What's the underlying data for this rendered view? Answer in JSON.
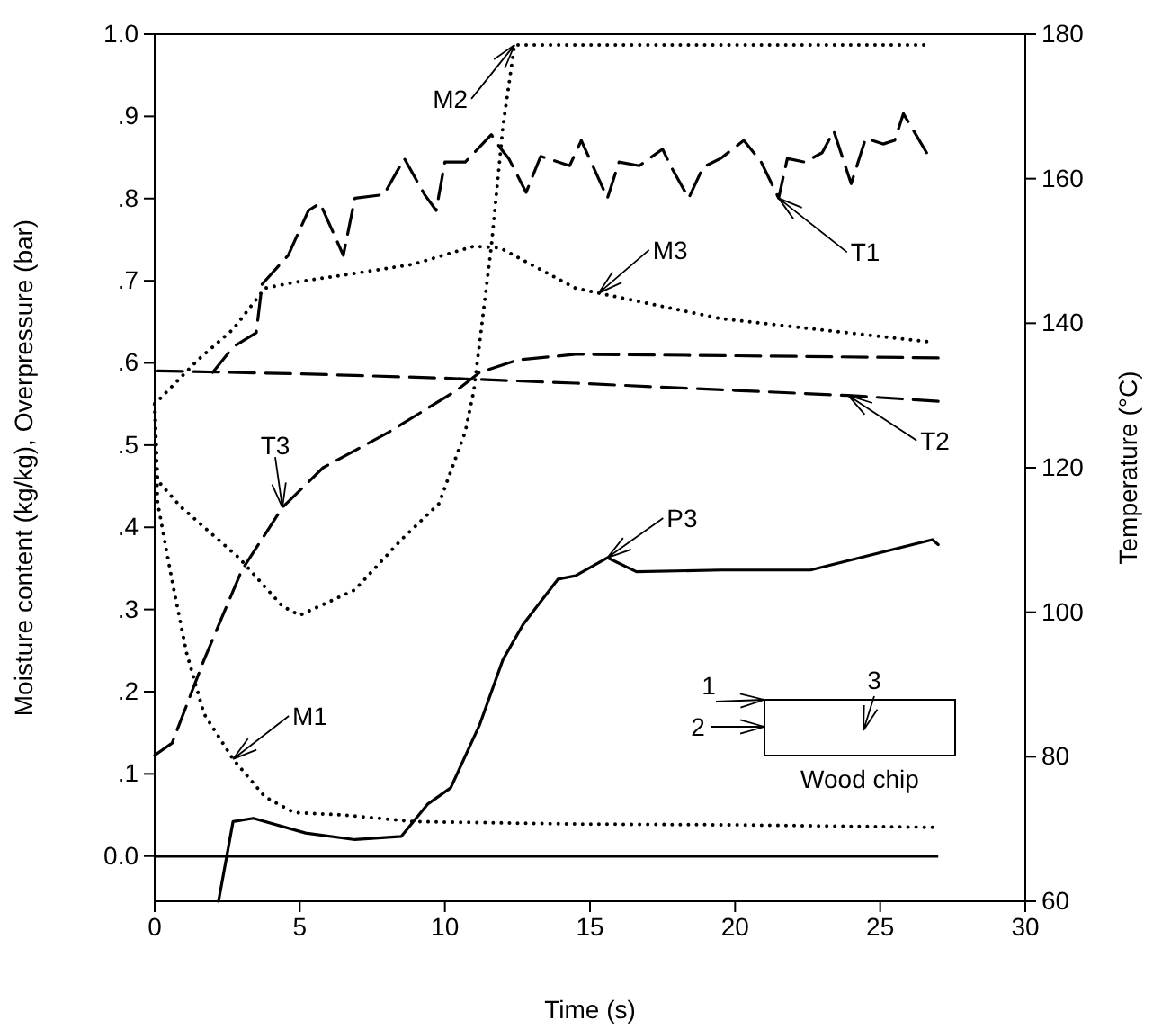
{
  "chart_data": {
    "type": "line",
    "xlabel": "Time (s)",
    "ylabel": "Moisture content (kg/kg), Overpressure (bar)",
    "y2label": "Temperature (°C)",
    "xlim": [
      0,
      30
    ],
    "xticks": [
      0,
      5,
      10,
      15,
      20,
      25,
      30
    ],
    "ylim": [
      -0.055,
      1.0
    ],
    "yticks": [
      {
        "value": 0,
        "label": "0.0"
      },
      {
        "value": 0.1,
        "label": ".1"
      },
      {
        "value": 0.2,
        "label": ".2"
      },
      {
        "value": 0.3,
        "label": ".3"
      },
      {
        "value": 0.4,
        "label": ".4"
      },
      {
        "value": 0.5,
        "label": ".5"
      },
      {
        "value": 0.6,
        "label": ".6"
      },
      {
        "value": 0.7,
        "label": ".7"
      },
      {
        "value": 0.8,
        "label": ".8"
      },
      {
        "value": 0.9,
        "label": ".9"
      },
      {
        "value": 1.0,
        "label": "1.0"
      }
    ],
    "y2lim": [
      60,
      180
    ],
    "y2ticks": [
      60,
      80,
      100,
      120,
      140,
      160,
      180
    ],
    "grid": false,
    "marker": "none",
    "ref_lines": [
      {
        "axis": "y",
        "value": 0,
        "color": "#000000",
        "line_style": "solid"
      }
    ],
    "annotations": [
      "1",
      "2",
      "3",
      "Wood chip"
    ],
    "series": [
      {
        "name": "T1",
        "axis": "y2",
        "color": "#000000",
        "line_style": "dashed",
        "x": [
          2.0,
          2.7,
          3.5,
          3.7,
          4.6,
          5.3,
          5.7,
          6.5,
          6.9,
          7.9,
          8.6,
          9.3,
          9.7,
          10.0,
          10.7,
          11.6,
          11.9,
          12.2,
          12.8,
          13.3,
          14.3,
          14.7,
          15.6,
          16.0,
          16.7,
          17.5,
          17.8,
          18.4,
          18.9,
          19.5,
          20.3,
          20.9,
          21.5,
          21.8,
          22.4,
          23.0,
          23.4,
          24.0,
          24.5,
          25.1,
          25.5,
          25.8,
          26.6
        ],
        "values": [
          133.2,
          136.7,
          138.7,
          145.4,
          149.4,
          155.6,
          156.6,
          149.4,
          157.3,
          157.8,
          162.8,
          157.8,
          155.6,
          162.3,
          162.3,
          166.1,
          164.3,
          162.8,
          158.1,
          163.1,
          161.8,
          165.3,
          157.3,
          162.3,
          161.8,
          164.1,
          161.6,
          157.3,
          161.6,
          162.8,
          165.3,
          162.3,
          157.3,
          162.8,
          162.3,
          163.6,
          166.6,
          159.3,
          165.6,
          164.8,
          165.3,
          169.0,
          163.6
        ]
      },
      {
        "name": "T2",
        "axis": "y2",
        "color": "#000000",
        "line_style": "dashed",
        "x": [
          0.1,
          5,
          10,
          14.5,
          20,
          23.9,
          27
        ],
        "values": [
          133.4,
          133,
          132.4,
          131.7,
          130.7,
          130,
          129.2
        ]
      },
      {
        "name": "T3",
        "axis": "y2",
        "color": "#000000",
        "line_style": "dashed",
        "x": [
          0,
          0.6,
          1.7,
          3.0,
          4.4,
          5.8,
          8.1,
          10.4,
          11.2,
          12.5,
          14.5,
          20,
          27
        ],
        "values": [
          80.2,
          81.9,
          93.4,
          105.8,
          114.5,
          120,
          125,
          130.7,
          133.2,
          134.9,
          135.7,
          135.5,
          135.2
        ]
      },
      {
        "name": "M1",
        "color": "#000000",
        "line_style": "dotted",
        "x": [
          0,
          0.1,
          0.6,
          1.1,
          1.7,
          2.7,
          3.8,
          4.8,
          6.5,
          8.9,
          14.5,
          20,
          26.8
        ],
        "values": [
          0.55,
          0.43,
          0.335,
          0.247,
          0.173,
          0.118,
          0.072,
          0.053,
          0.05,
          0.042,
          0.039,
          0.038,
          0.035
        ]
      },
      {
        "name": "M2",
        "color": "#000000",
        "line_style": "dotted",
        "x": [
          0,
          0.1,
          0.9,
          2.9,
          4.4,
          5.0,
          6.9,
          8.5,
          9.8,
          10.7,
          11.0,
          11.6,
          12.0,
          12.4,
          20,
          26.5
        ],
        "values": [
          0.55,
          0.457,
          0.425,
          0.363,
          0.304,
          0.293,
          0.324,
          0.385,
          0.429,
          0.516,
          0.567,
          0.742,
          0.888,
          0.987,
          0.987,
          0.987
        ]
      },
      {
        "name": "M3",
        "color": "#000000",
        "line_style": "dotted",
        "x": [
          0,
          1.5,
          2.7,
          3.8,
          4.8,
          6.9,
          8.9,
          11.0,
          11.9,
          14.5,
          15.3,
          19.5,
          26.6
        ],
        "values": [
          0.55,
          0.604,
          0.641,
          0.691,
          0.698,
          0.709,
          0.72,
          0.742,
          0.74,
          0.691,
          0.685,
          0.654,
          0.626
        ]
      },
      {
        "name": "P3",
        "color": "#000000",
        "line_style": "solid",
        "x": [
          2.2,
          2.7,
          3.4,
          5.2,
          6.9,
          8.5,
          9.4,
          10.2,
          11.2,
          12.0,
          12.7,
          13.9,
          14.5,
          15.6,
          16.6,
          19.5,
          22.6,
          26.8,
          27.0
        ],
        "values": [
          -0.055,
          0.042,
          0.046,
          0.028,
          0.02,
          0.024,
          0.063,
          0.083,
          0.16,
          0.239,
          0.282,
          0.337,
          0.341,
          0.363,
          0.346,
          0.348,
          0.348,
          0.385,
          0.379
        ]
      }
    ]
  }
}
